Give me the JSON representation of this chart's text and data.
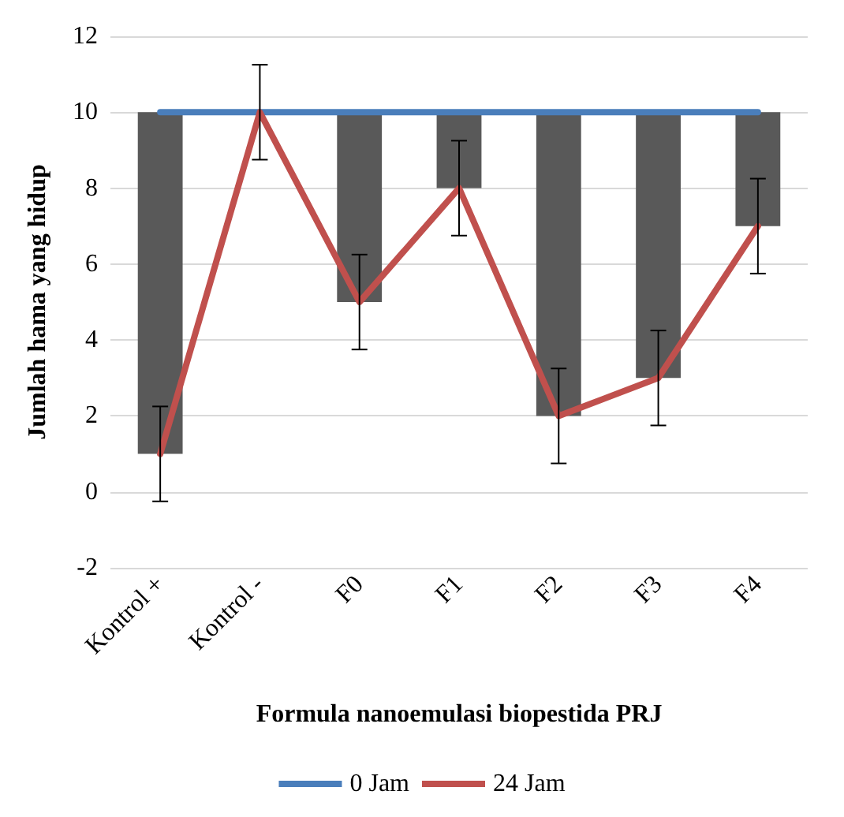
{
  "chart_data": {
    "type": "line",
    "xlabel": "Formula nanoemulasi biopestida PRJ",
    "ylabel": "Jumlah hama yang hidup",
    "categories": [
      "Kontrol +",
      "Kontrol -",
      "F0",
      "F1",
      "F2",
      "F3",
      "F4"
    ],
    "series": [
      {
        "type": "bar",
        "color": "#595959",
        "base": [
          1,
          null,
          5,
          8,
          2,
          3,
          7
        ],
        "values": [
          9,
          null,
          5,
          2,
          8,
          7,
          3
        ]
      },
      {
        "name": "0 Jam",
        "color": "#4a7ebb",
        "values": [
          10,
          10,
          10,
          10,
          10,
          10,
          10
        ]
      },
      {
        "name": "24 Jam",
        "color": "#c0504d",
        "values": [
          1,
          10,
          5,
          8,
          2,
          3,
          7
        ],
        "errors": [
          1.25,
          1.25,
          1.25,
          1.25,
          1.25,
          1.25,
          1.25
        ]
      }
    ],
    "ylim": [
      -2,
      12
    ],
    "yticks": [
      -2,
      0,
      2,
      4,
      6,
      8,
      10,
      12
    ],
    "grid": "y",
    "legend": "bottom",
    "marker": "none",
    "line_style": "solid"
  }
}
